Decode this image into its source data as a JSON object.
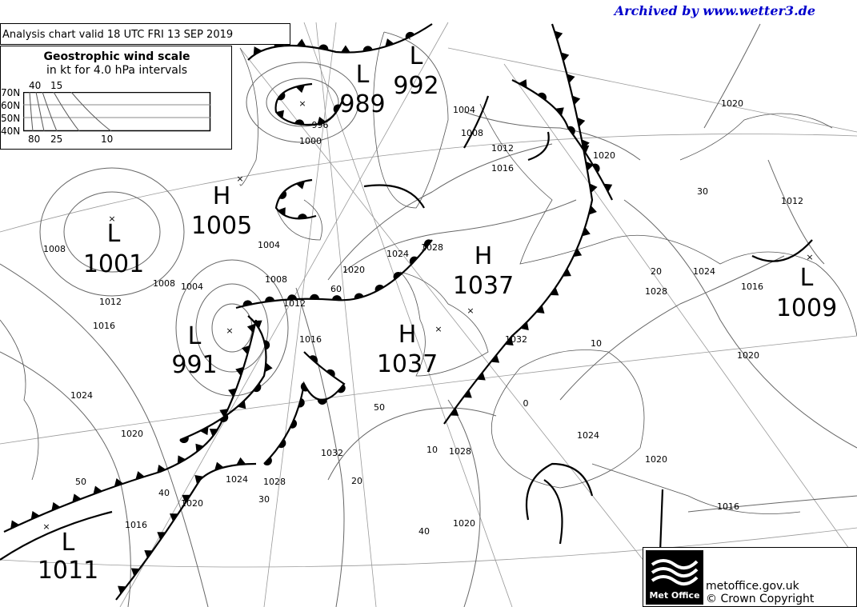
{
  "header": {
    "archive_credit": "Archived by www.wetter3.de",
    "chart_title": "Analysis chart  valid 18 UTC FRI 13  SEP 2019"
  },
  "wind_scale": {
    "title": "Geostrophic wind scale",
    "subtitle": "in kt for 4.0 hPa intervals",
    "latitudes": [
      "70N",
      "60N",
      "50N",
      "40N"
    ],
    "top_labels": [
      "40",
      "15"
    ],
    "bottom_labels": [
      "80",
      "25",
      "10"
    ]
  },
  "pressure_centers": [
    {
      "type": "L",
      "value": "992"
    },
    {
      "type": "L",
      "value": "989"
    },
    {
      "type": "H",
      "value": "1005"
    },
    {
      "type": "L",
      "value": "1001"
    },
    {
      "type": "L",
      "value": "991"
    },
    {
      "type": "H",
      "value": "1037"
    },
    {
      "type": "H",
      "value": "1037"
    },
    {
      "type": "L",
      "value": "1009"
    },
    {
      "type": "L",
      "value": "1011"
    }
  ],
  "isobar_labels": [
    "1000",
    "996",
    "1004",
    "1008",
    "1012",
    "1016",
    "1020",
    "1020",
    "1012",
    "30",
    "1024",
    "20",
    "1028",
    "1016",
    "10",
    "1020",
    "1024",
    "1020",
    "1016",
    "0",
    "1032",
    "1028",
    "1024",
    "1020",
    "60",
    "1012",
    "1008",
    "1004",
    "1008",
    "1004",
    "1012",
    "1016",
    "1008",
    "1024",
    "1020",
    "1016",
    "50",
    "1032",
    "20",
    "10",
    "1028",
    "1020",
    "40",
    "50",
    "40",
    "1020",
    "1024",
    "1028",
    "30",
    "1016"
  ],
  "footer": {
    "logo_text": "Met Office",
    "url": "metoffice.gov.uk",
    "copyright": "© Crown Copyright"
  },
  "colors": {
    "archive_text": "#0000cc",
    "lines": "#000000",
    "graticule": "#888888"
  }
}
